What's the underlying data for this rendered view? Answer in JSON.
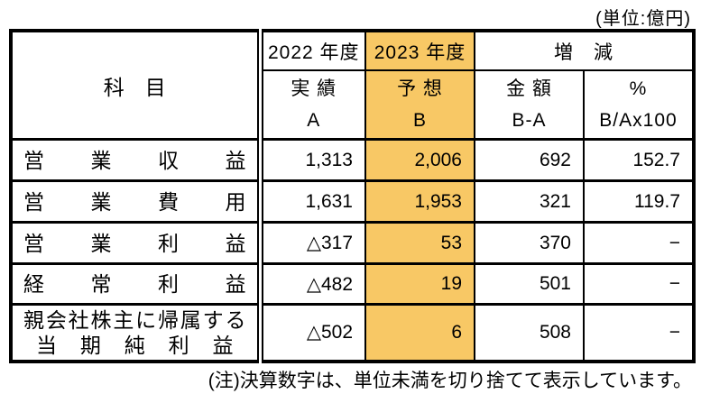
{
  "unit_label": "(単位:億円)",
  "table": {
    "header": {
      "item_label": "科　目",
      "fy2022": {
        "year": "2022 年度",
        "label": "実 績",
        "code": "A"
      },
      "fy2023": {
        "year": "2023 年度",
        "label": "予 想",
        "code": "B"
      },
      "change": {
        "label": "増　減",
        "amount_label": "金 額",
        "amount_code": "B-A",
        "percent_label": "%",
        "percent_code": "B/Ax100"
      }
    },
    "rows": [
      {
        "item": "営業収益",
        "fy2022_actual": "1,313",
        "fy2023_forecast": "2,006",
        "change_amount": "692",
        "change_percent": "152.7"
      },
      {
        "item": "営業費用",
        "fy2022_actual": "1,631",
        "fy2023_forecast": "1,953",
        "change_amount": "321",
        "change_percent": "119.7"
      },
      {
        "item": "営業利益",
        "fy2022_actual": "△317",
        "fy2023_forecast": "53",
        "change_amount": "370",
        "change_percent": "−"
      },
      {
        "item": "経常利益",
        "fy2022_actual": "△482",
        "fy2023_forecast": "19",
        "change_amount": "501",
        "change_percent": "−"
      },
      {
        "item": "親会社株主に帰属する",
        "item_line2": "当期純利益",
        "fy2022_actual": "△502",
        "fy2023_forecast": "6",
        "change_amount": "508",
        "change_percent": "−"
      }
    ]
  },
  "note": "(注)決算数字は、単位未満を切り捨てて表示しています。",
  "colors": {
    "highlight": "#F8C865",
    "border": "#000000"
  }
}
